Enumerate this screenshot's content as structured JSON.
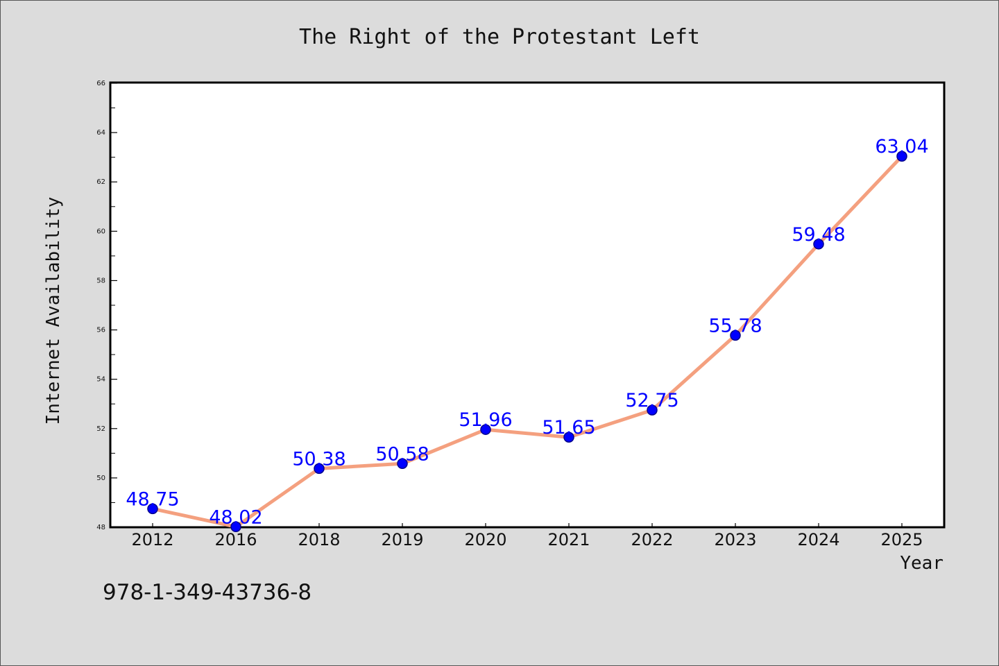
{
  "chart_data": {
    "type": "line",
    "title": "The Right of the Protestant Left",
    "xlabel": "Year",
    "ylabel": "Internet Availability",
    "categories": [
      "2012",
      "2016",
      "2018",
      "2019",
      "2020",
      "2021",
      "2022",
      "2023",
      "2024",
      "2025"
    ],
    "values": [
      48.75,
      48.02,
      50.38,
      50.58,
      51.96,
      51.65,
      52.75,
      55.78,
      59.48,
      63.04
    ],
    "data_labels": [
      "48.75",
      "48.02",
      "50.38",
      "50.58",
      "51.96",
      "51.65",
      "52.75",
      "55.78",
      "59.48",
      "63.04"
    ],
    "ylim": [
      48,
      66
    ],
    "y_ticks": [
      "48",
      "50",
      "52",
      "54",
      "56",
      "58",
      "60",
      "62",
      "64",
      "66"
    ],
    "grid": false,
    "legend": "none",
    "colors": {
      "line": "#f4a07f",
      "marker": "#0000ff",
      "marker_edge": "#00008b",
      "data_label": "#0000ff",
      "background": "#dcdcdc",
      "plot_area": "#ffffff"
    }
  },
  "footer_text": "978-1-349-43736-8"
}
